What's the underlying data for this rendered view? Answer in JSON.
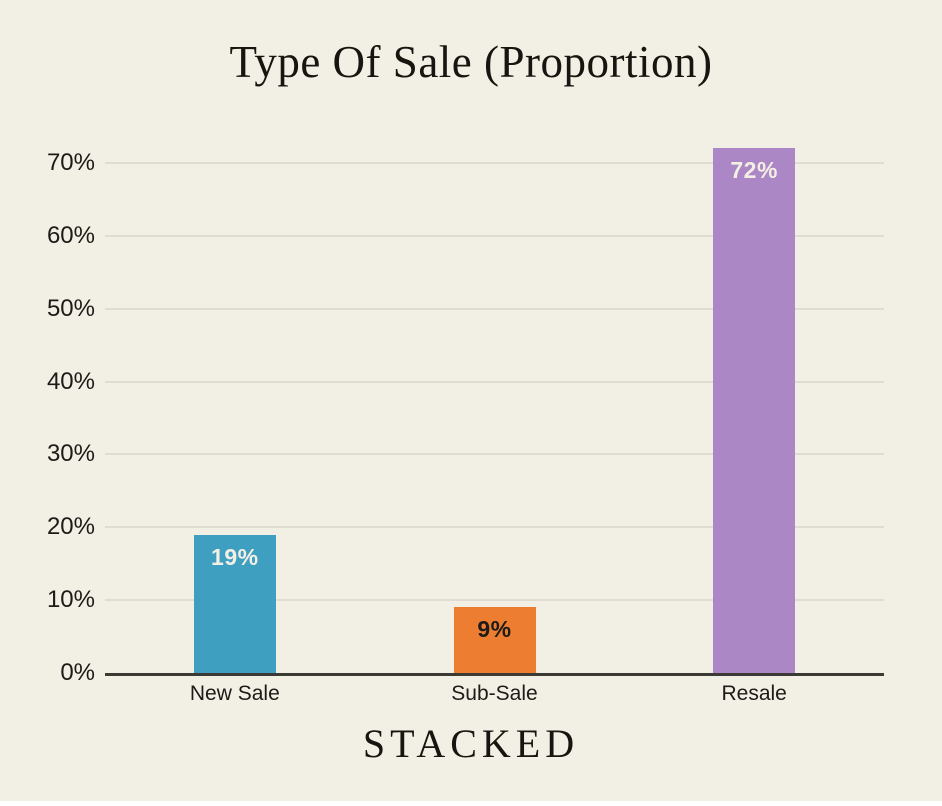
{
  "page": {
    "background_color": "#f2efe4",
    "title": "Type Of Sale (Proportion)",
    "footer_logo": "STACKED"
  },
  "chart_data": {
    "type": "bar",
    "title": "Type Of Sale (Proportion)",
    "categories": [
      "New Sale",
      "Sub-Sale",
      "Resale"
    ],
    "values": [
      19,
      9,
      72
    ],
    "value_labels": [
      "19%",
      "9%",
      "72%"
    ],
    "bar_colors": [
      "#3f9fc1",
      "#ed7d31",
      "#ac87c5"
    ],
    "value_label_colors": [
      "#f3efe4",
      "#1c1b17",
      "#f3efe4"
    ],
    "xlabel": "",
    "ylabel": "",
    "ylim": [
      0,
      70
    ],
    "yticks": [
      0,
      10,
      20,
      30,
      40,
      50,
      60,
      70
    ],
    "ytick_labels": [
      "0%",
      "10%",
      "20%",
      "30%",
      "40%",
      "50%",
      "60%",
      "70%"
    ],
    "grid": "horizontal",
    "legend": "none",
    "gridline_color": "#e0dcd1",
    "axis_color": "#3b3a34",
    "text_color": "#1c1b17"
  }
}
